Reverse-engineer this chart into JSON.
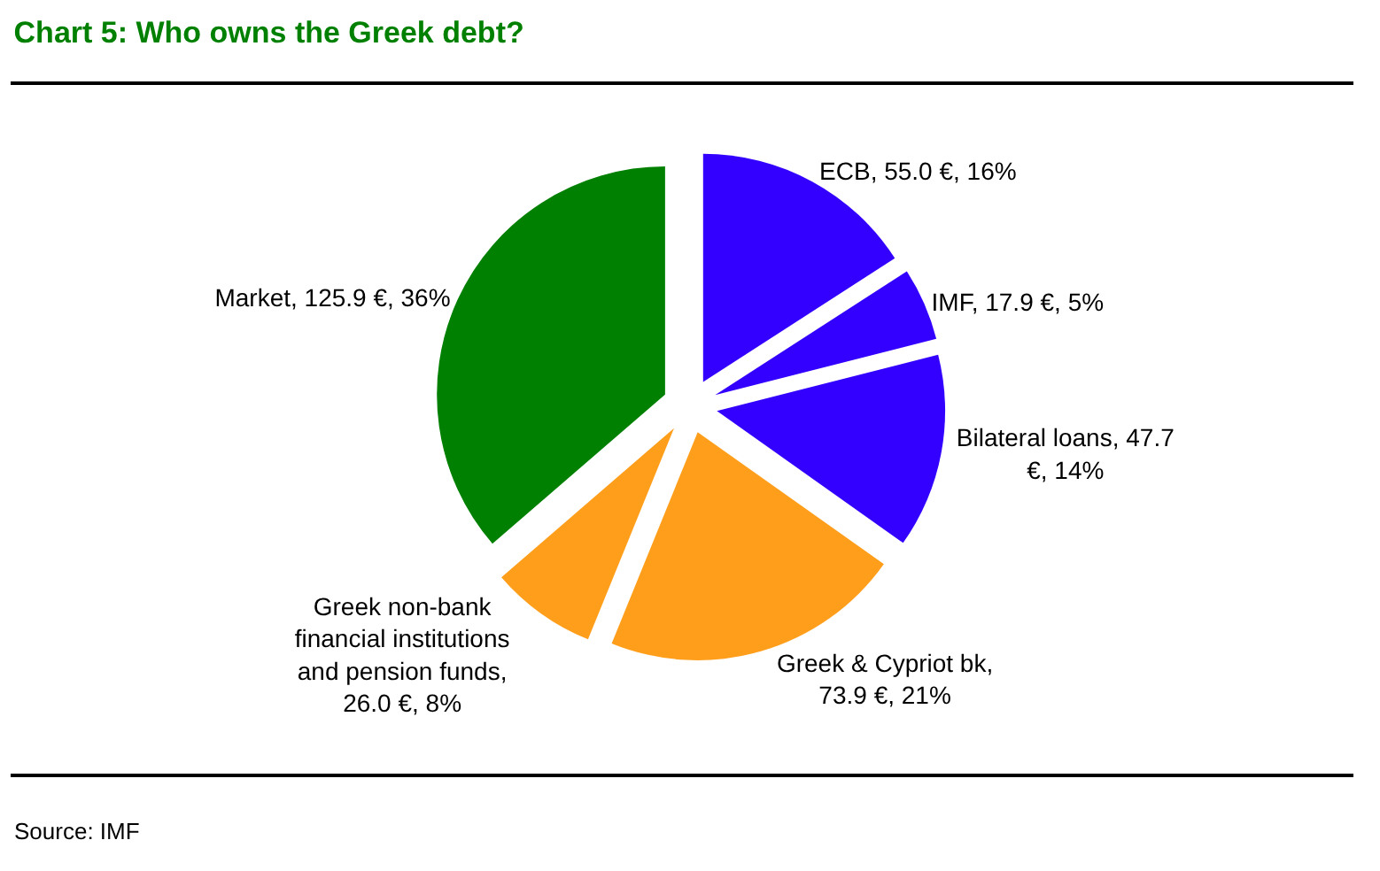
{
  "chart_data": {
    "type": "pie",
    "title": "Chart 5: Who owns the Greek debt?",
    "categories": [
      "ECB, 55.0 €, 16%",
      "IMF, 17.9 €, 5%",
      "Bilateral loans, 47.7 €, 14%",
      "Greek & Cypriot bk, 73.9 €, 21%",
      "Greek non-bank financial institutions and pension funds, 26.0 €, 8%",
      "Market, 125.9 €, 36%"
    ],
    "values": [
      55.0,
      17.9,
      47.7,
      73.9,
      26.0,
      125.9
    ],
    "colors": [
      "#3300ff",
      "#3300ff",
      "#3300ff",
      "#ff9e1b",
      "#ff9e1b",
      "#008000"
    ],
    "legend": false,
    "annotations": [
      "Source: IMF"
    ]
  }
}
